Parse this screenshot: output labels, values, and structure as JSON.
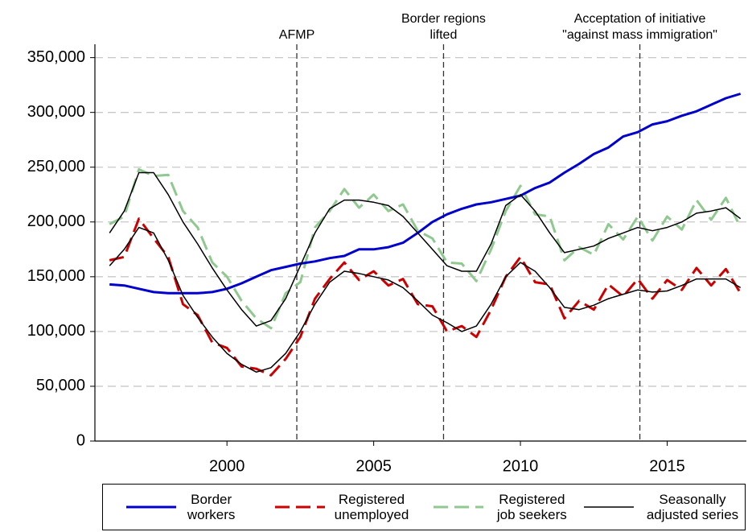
{
  "chart_data": {
    "type": "line",
    "xlim": [
      1995.5,
      2017.7
    ],
    "xticks": [
      2000,
      2005,
      2010,
      2015
    ],
    "ylim": [
      0,
      360000
    ],
    "yticks": [
      0,
      {
        "value": 50000,
        "label": "50,000"
      },
      {
        "value": 100000,
        "label": "100,000"
      },
      {
        "value": 150000,
        "label": "150,000"
      },
      {
        "value": 200000,
        "label": "200,000"
      },
      {
        "value": 250000,
        "label": "250,000"
      },
      {
        "value": 300000,
        "label": "300,000"
      },
      {
        "value": 350000,
        "label": "350,000"
      }
    ],
    "grid": true,
    "vlines": [
      {
        "x": 2002.38,
        "label": [
          "AFMP"
        ]
      },
      {
        "x": 2007.38,
        "label": [
          "Border regions",
          "lifted"
        ]
      },
      {
        "x": 2014.07,
        "label": [
          "Acceptation of initiative",
          "\"against mass immigration\""
        ]
      }
    ],
    "x": [
      1996,
      1996.5,
      1997,
      1997.5,
      1998,
      1998.5,
      1999,
      1999.5,
      2000,
      2000.5,
      2001,
      2001.5,
      2002,
      2002.5,
      2003,
      2003.5,
      2004,
      2004.5,
      2005,
      2005.5,
      2006,
      2006.5,
      2007,
      2007.5,
      2008,
      2008.5,
      2009,
      2009.5,
      2010,
      2010.5,
      2011,
      2011.5,
      2012,
      2012.5,
      2013,
      2013.5,
      2014,
      2014.5,
      2015,
      2015.5,
      2016,
      2016.5,
      2017,
      2017.5
    ],
    "series": [
      {
        "name": "Border workers",
        "color": "#0000cc",
        "style": "solid",
        "values": [
          143000,
          142000,
          139000,
          136000,
          135000,
          135000,
          135000,
          136000,
          139000,
          144000,
          150000,
          156000,
          159000,
          162000,
          164000,
          167000,
          169000,
          175000,
          175000,
          177000,
          181000,
          190000,
          200000,
          207000,
          212000,
          216000,
          218000,
          221000,
          224000,
          231000,
          236000,
          245000,
          253000,
          262000,
          268000,
          278000,
          282000,
          289000,
          292000,
          297000,
          301000,
          307000,
          313000,
          317000
        ]
      },
      {
        "name": "Registered unemployed",
        "color": "#cc0000",
        "style": "dashed",
        "values": [
          165000,
          168000,
          203000,
          185000,
          168000,
          125000,
          115000,
          90000,
          85000,
          68000,
          66000,
          60000,
          75000,
          95000,
          130000,
          148000,
          163000,
          147000,
          155000,
          142000,
          148000,
          125000,
          123000,
          100000,
          105000,
          95000,
          120000,
          150000,
          168000,
          145000,
          143000,
          112000,
          128000,
          120000,
          143000,
          132000,
          148000,
          130000,
          147000,
          138000,
          158000,
          142000,
          157000,
          135000
        ]
      },
      {
        "name": "Registered job seekers",
        "color": "#8fc98f",
        "style": "dashed",
        "values": [
          198000,
          205000,
          248000,
          242000,
          243000,
          210000,
          195000,
          163000,
          150000,
          128000,
          112000,
          103000,
          135000,
          145000,
          195000,
          210000,
          230000,
          213000,
          225000,
          210000,
          216000,
          192000,
          185000,
          163000,
          162000,
          146000,
          175000,
          210000,
          233000,
          207000,
          205000,
          165000,
          177000,
          170000,
          198000,
          184000,
          205000,
          183000,
          205000,
          193000,
          220000,
          202000,
          222000,
          195000
        ]
      },
      {
        "name": "Seasonally adjusted series",
        "color": "#000000",
        "style": "thin",
        "values": [
          160000,
          175000,
          195000,
          190000,
          165000,
          133000,
          113000,
          95000,
          80000,
          70000,
          63000,
          67000,
          80000,
          100000,
          125000,
          145000,
          155000,
          153000,
          150000,
          147000,
          140000,
          128000,
          115000,
          108000,
          100000,
          105000,
          125000,
          150000,
          163000,
          155000,
          140000,
          122000,
          120000,
          124000,
          130000,
          134000,
          138000,
          136000,
          137000,
          142000,
          148000,
          148000,
          148000,
          140000
        ]
      },
      {
        "color": "#000000",
        "style": "thin",
        "values": [
          190000,
          210000,
          245000,
          245000,
          225000,
          200000,
          180000,
          158000,
          138000,
          120000,
          105000,
          110000,
          130000,
          160000,
          190000,
          212000,
          220000,
          220000,
          218000,
          215000,
          205000,
          190000,
          175000,
          160000,
          155000,
          155000,
          180000,
          215000,
          225000,
          210000,
          190000,
          172000,
          175000,
          178000,
          185000,
          190000,
          195000,
          192000,
          195000,
          200000,
          208000,
          210000,
          213000,
          203000
        ]
      }
    ]
  }
}
